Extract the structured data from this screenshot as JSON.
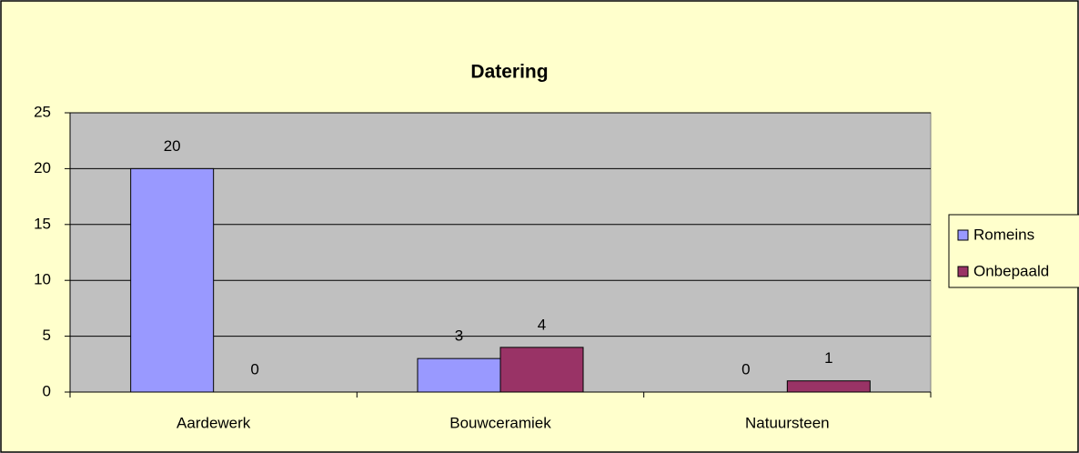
{
  "chart_data": {
    "type": "bar",
    "title": "Datering",
    "categories": [
      "Aardewerk",
      "Bouwceramiek",
      "Natuursteen"
    ],
    "series": [
      {
        "name": "Romeins",
        "color": "#9999ff",
        "values": [
          20,
          3,
          0
        ]
      },
      {
        "name": "Onbepaald",
        "color": "#993366",
        "values": [
          0,
          4,
          1
        ]
      }
    ],
    "ylim": [
      0,
      25
    ],
    "yticks": [
      0,
      5,
      10,
      15,
      20,
      25
    ],
    "grid": true,
    "legend": "right"
  }
}
